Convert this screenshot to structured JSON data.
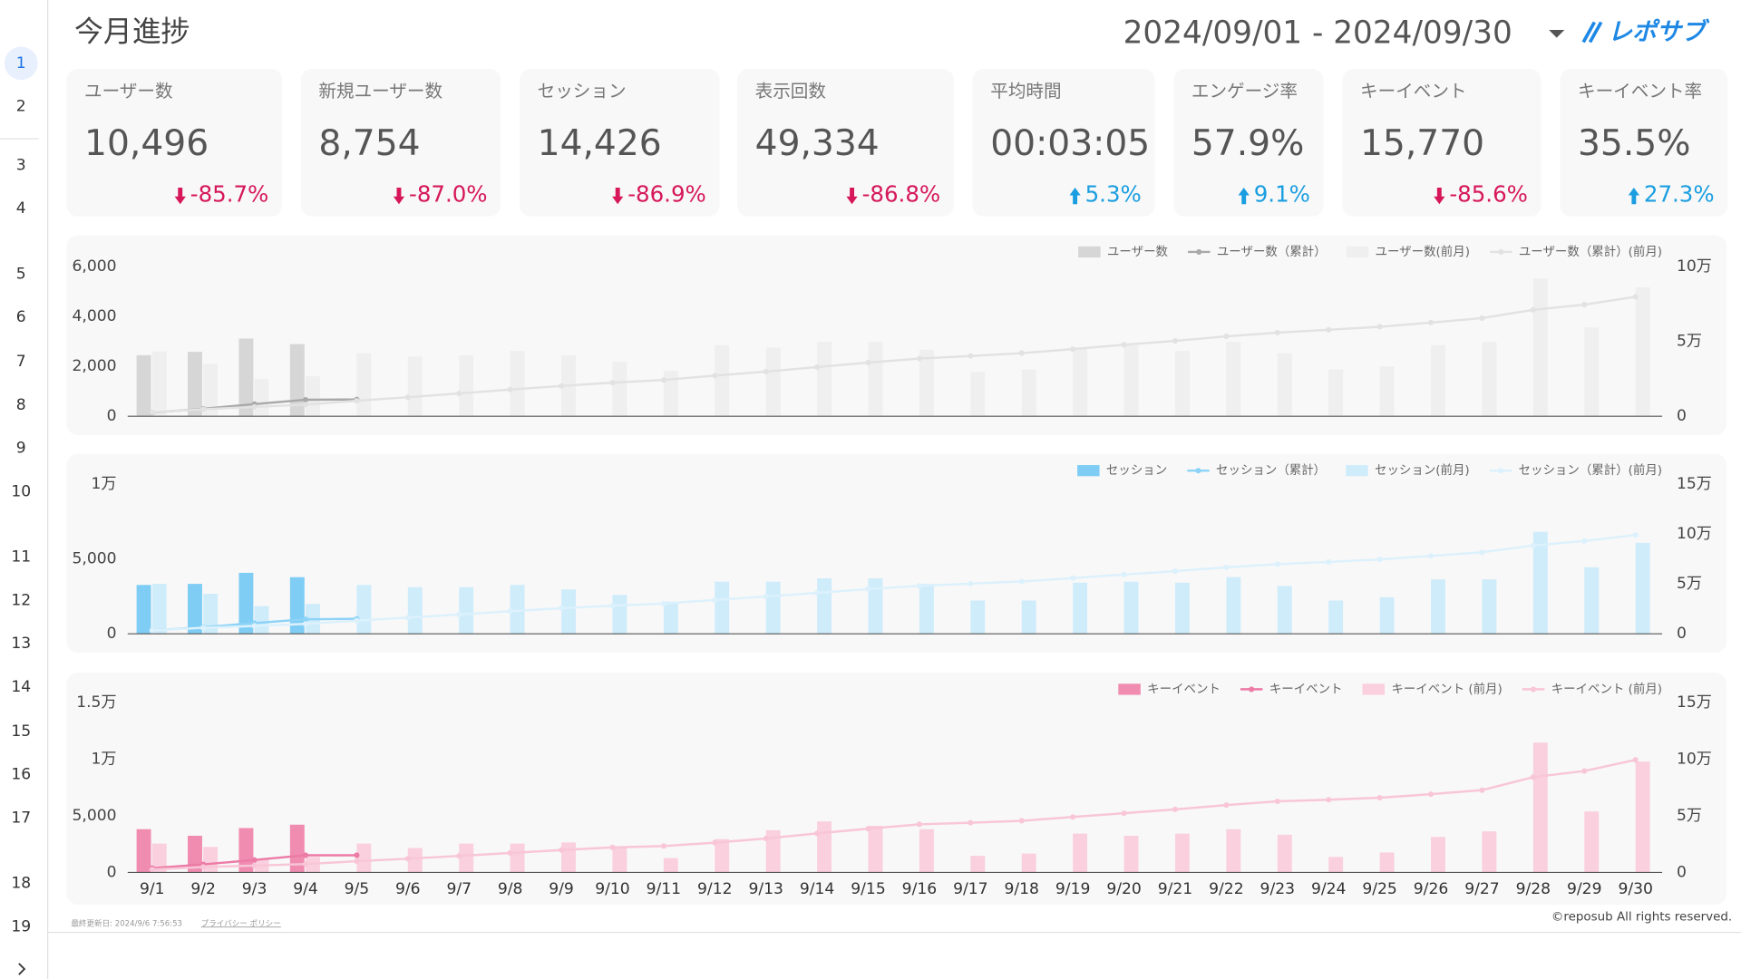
{
  "sidebar": {
    "rows": [
      1,
      2,
      3,
      4,
      5,
      6,
      7,
      8,
      9,
      10,
      11,
      12,
      13,
      14,
      15,
      16,
      17,
      18,
      19
    ]
  },
  "header": {
    "title": "今月進捗",
    "date_range": "2024/09/01 - 2024/09/30",
    "logo": "レポサブ"
  },
  "kpis": [
    {
      "label": "ユーザー数",
      "value": "10,496",
      "change": "-85.7%",
      "trend": "down"
    },
    {
      "label": "新規ユーザー数",
      "value": "8,754",
      "change": "-87.0%",
      "trend": "down"
    },
    {
      "label": "セッション",
      "value": "14,426",
      "change": "-86.9%",
      "trend": "down"
    },
    {
      "label": "表示回数",
      "value": "49,334",
      "change": "-86.8%",
      "trend": "down"
    },
    {
      "label": "平均時間",
      "value": "00:03:05",
      "change": "5.3%",
      "trend": "up"
    },
    {
      "label": "エンゲージ率",
      "value": "57.9%",
      "change": "9.1%",
      "trend": "up"
    },
    {
      "label": "キーイベント",
      "value": "15,770",
      "change": "-85.6%",
      "trend": "down"
    },
    {
      "label": "キーイベント率",
      "value": "35.5%",
      "change": "27.3%",
      "trend": "up"
    }
  ],
  "chart_data": [
    {
      "type": "combo",
      "legend": "top-right",
      "grid": false,
      "ylim": [
        0,
        6000
      ],
      "yticks": [
        0,
        {
          "value": 2000,
          "label": "2,000"
        },
        {
          "value": 4000,
          "label": "4,000"
        },
        {
          "value": 6000,
          "label": "6,000"
        }
      ],
      "y2lim": [
        0,
        100000
      ],
      "y2ticks": [
        0,
        {
          "value": 50000,
          "label": "5万"
        },
        {
          "value": 100000,
          "label": "10万"
        }
      ],
      "series": [
        {
          "name": "ユーザー数",
          "type": "bar",
          "color": "#d6d6d6",
          "values": [
            2444,
            2578,
            3111,
            2889,
            null,
            null,
            null,
            null,
            null,
            null,
            null,
            null,
            null,
            null,
            null,
            null,
            null,
            null,
            null,
            null,
            null,
            null,
            null,
            null,
            null,
            null,
            null,
            null,
            null,
            null
          ]
        },
        {
          "name": "ユーザー数（累計）",
          "type": "line",
          "axis": "y2",
          "color": "#a9a9a9",
          "values": [
            2400,
            5000,
            8100,
            11000,
            11200,
            null,
            null,
            null,
            null,
            null,
            null,
            null,
            null,
            null,
            null,
            null,
            null,
            null,
            null,
            null,
            null,
            null,
            null,
            null,
            null,
            null,
            null,
            null,
            null,
            null
          ]
        },
        {
          "name": "ユーザー数(前月)",
          "type": "bar",
          "color": "#efefef",
          "values": [
            2600,
            2100,
            1500,
            1600,
            2530,
            2400,
            2440,
            2620,
            2440,
            2180,
            1820,
            2840,
            2750,
            2980,
            2980,
            2670,
            1780,
            1870,
            2710,
            2840,
            2620,
            2980,
            2530,
            1870,
            2000,
            2840,
            2980,
            5510,
            3560,
            5160
          ]
        },
        {
          "name": "ユーザー数（累計）(前月)",
          "type": "line",
          "axis": "y2",
          "color": "#e2e2e2",
          "values": [
            2600,
            4700,
            6200,
            7800,
            10300,
            12700,
            15200,
            17800,
            20200,
            22400,
            24200,
            27100,
            29800,
            32800,
            35800,
            38500,
            40200,
            42100,
            44800,
            47700,
            50300,
            53300,
            55800,
            57700,
            59700,
            62500,
            65500,
            71000,
            74500,
            79700
          ]
        }
      ]
    },
    {
      "type": "combo",
      "legend": "top-right",
      "grid": false,
      "ylim": [
        0,
        10000
      ],
      "yticks": [
        0,
        {
          "value": 5000,
          "label": "5,000"
        },
        {
          "value": 10000,
          "label": "1万"
        }
      ],
      "y2lim": [
        0,
        150000
      ],
      "y2ticks": [
        0,
        {
          "value": 50000,
          "label": "5万"
        },
        {
          "value": 100000,
          "label": "10万"
        },
        {
          "value": 150000,
          "label": "15万"
        }
      ],
      "series": [
        {
          "name": "セッション",
          "type": "bar",
          "color": "#7fcdf5",
          "values": [
            3260,
            3330,
            4070,
            3780,
            null,
            null,
            null,
            null,
            null,
            null,
            null,
            null,
            null,
            null,
            null,
            null,
            null,
            null,
            null,
            null,
            null,
            null,
            null,
            null,
            null,
            null,
            null,
            null,
            null,
            null
          ]
        },
        {
          "name": "セッション（累計）",
          "type": "line",
          "axis": "y2",
          "color": "#8dd3f7",
          "values": [
            3300,
            6600,
            10700,
            14500,
            15000,
            null,
            null,
            null,
            null,
            null,
            null,
            null,
            null,
            null,
            null,
            null,
            null,
            null,
            null,
            null,
            null,
            null,
            null,
            null,
            null,
            null,
            null,
            null,
            null,
            null
          ]
        },
        {
          "name": "セッション(前月)",
          "type": "bar",
          "color": "#cfecfb",
          "values": [
            3330,
            2670,
            1850,
            2000,
            3260,
            3110,
            3110,
            3260,
            2960,
            2590,
            2150,
            3480,
            3480,
            3700,
            3700,
            3330,
            2220,
            2220,
            3410,
            3480,
            3410,
            3780,
            3190,
            2220,
            2440,
            3630,
            3630,
            6810,
            4440,
            6070
          ]
        },
        {
          "name": "セッション（累計）(前月)",
          "type": "line",
          "axis": "y2",
          "color": "#dcf1fc",
          "values": [
            3300,
            6000,
            7900,
            9900,
            13100,
            16200,
            19300,
            22600,
            25600,
            28100,
            30300,
            33800,
            37300,
            41000,
            44700,
            48000,
            50200,
            52400,
            55800,
            59300,
            62700,
            66500,
            69700,
            71900,
            74400,
            78000,
            81600,
            88400,
            92900,
            98900
          ]
        }
      ]
    },
    {
      "type": "combo",
      "legend": "top-right",
      "grid": false,
      "categories": [
        "9/1",
        "9/2",
        "9/3",
        "9/4",
        "9/5",
        "9/6",
        "9/7",
        "9/8",
        "9/9",
        "9/10",
        "9/11",
        "9/12",
        "9/13",
        "9/14",
        "9/15",
        "9/16",
        "9/17",
        "9/18",
        "9/19",
        "9/20",
        "9/21",
        "9/22",
        "9/23",
        "9/24",
        "9/25",
        "9/26",
        "9/27",
        "9/28",
        "9/29",
        "9/30"
      ],
      "ylim": [
        0,
        15000
      ],
      "yticks": [
        0,
        {
          "value": 5000,
          "label": "5,000"
        },
        {
          "value": 10000,
          "label": "1万"
        },
        {
          "value": 15000,
          "label": "1.5万"
        }
      ],
      "y2lim": [
        0,
        150000
      ],
      "y2ticks": [
        0,
        {
          "value": 50000,
          "label": "5万"
        },
        {
          "value": 100000,
          "label": "10万"
        },
        {
          "value": 150000,
          "label": "15万"
        }
      ],
      "series": [
        {
          "name": "キーイベント",
          "type": "bar",
          "color": "#f08cb0",
          "values": [
            3820,
            3240,
            3920,
            4220,
            null,
            null,
            null,
            null,
            null,
            null,
            null,
            null,
            null,
            null,
            null,
            null,
            null,
            null,
            null,
            null,
            null,
            null,
            null,
            null,
            null,
            null,
            null,
            null,
            null,
            null
          ]
        },
        {
          "name": "キーイベント",
          "type": "line",
          "axis": "y2",
          "color": "#ec7ba5",
          "values": [
            3800,
            7100,
            11000,
            15200,
            15200,
            null,
            null,
            null,
            null,
            null,
            null,
            null,
            null,
            null,
            null,
            null,
            null,
            null,
            null,
            null,
            null,
            null,
            null,
            null,
            null,
            null,
            null,
            null,
            null,
            null
          ]
        },
        {
          "name": "キーイベント (前月)",
          "type": "bar",
          "color": "#fad0de",
          "values": [
            2550,
            2250,
            1180,
            1370,
            2550,
            2160,
            2550,
            2550,
            2650,
            2250,
            1270,
            2940,
            3730,
            4510,
            4120,
            3820,
            1470,
            1670,
            3430,
            3240,
            3430,
            3820,
            3330,
            1370,
            1760,
            3140,
            3630,
            11470,
            5390,
            9800
          ]
        },
        {
          "name": "キーイベント (前月)",
          "type": "line",
          "axis": "y2",
          "color": "#f8c6d7",
          "values": [
            2550,
            4800,
            6000,
            7400,
            9900,
            12100,
            14600,
            17200,
            19800,
            22100,
            23300,
            26300,
            30000,
            34500,
            38600,
            42500,
            43900,
            45600,
            49000,
            52300,
            55700,
            59500,
            62800,
            64200,
            66000,
            69100,
            72700,
            84200,
            89600,
            99400
          ]
        }
      ]
    }
  ],
  "footer": {
    "updated": "最終更新日: 2024/9/6 7:56:53",
    "privacy": "プライバシー ポリシー",
    "copyright": "©reposub All rights reserved."
  }
}
